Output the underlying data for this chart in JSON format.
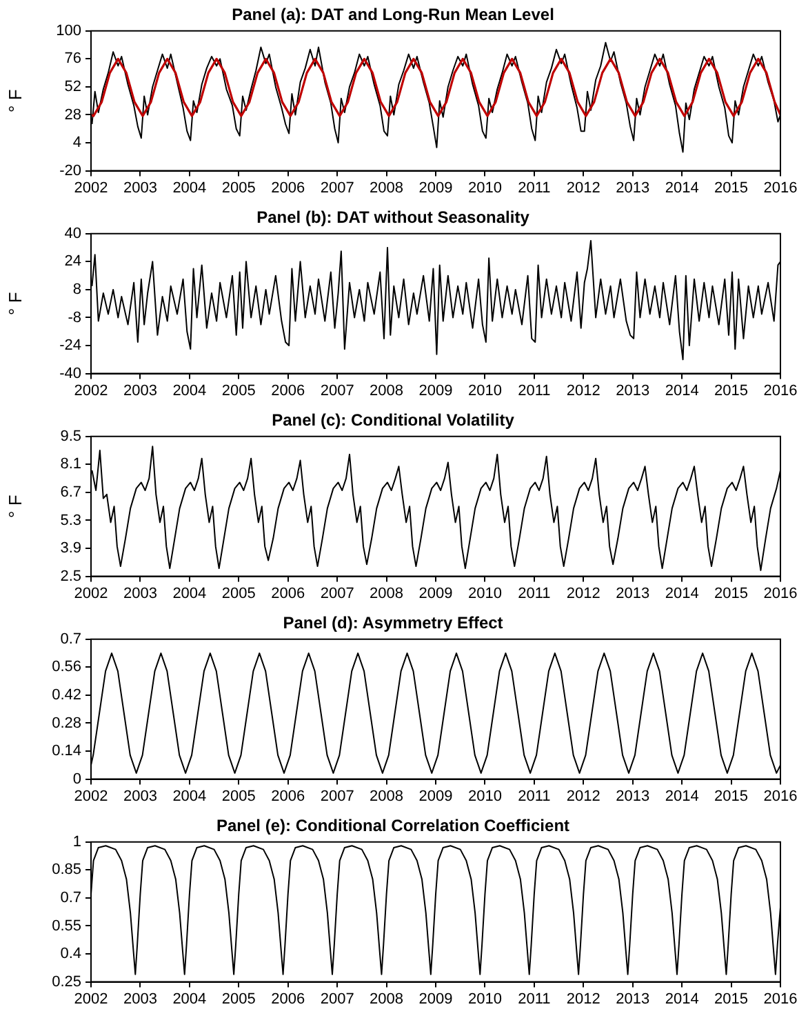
{
  "chart_data": [
    {
      "type": "line",
      "title": "Panel (a): DAT and Long-Run Mean Level",
      "ylabel": "° F",
      "xlim": [
        2002,
        2016
      ],
      "xticks": [
        2002,
        2003,
        2004,
        2005,
        2006,
        2007,
        2008,
        2009,
        2010,
        2011,
        2012,
        2013,
        2014,
        2015,
        2016
      ],
      "ylim": [
        -20,
        100
      ],
      "yticks": [
        -20,
        4,
        28,
        52,
        76,
        100
      ],
      "series": [
        {
          "color": "#000000",
          "x": [
            2002.02,
            2002.08,
            2002.15,
            2002.25,
            2002.35,
            2002.45,
            2002.55,
            2002.62,
            2002.75,
            2002.87,
            2002.95,
            2003.02,
            2003.08,
            2003.15,
            2003.25,
            2003.35,
            2003.45,
            2003.55,
            2003.62,
            2003.75,
            2003.87,
            2003.95,
            2004.02,
            2004.08,
            2004.15,
            2004.25,
            2004.35,
            2004.45,
            2004.55,
            2004.62,
            2004.75,
            2004.87,
            2004.95,
            2005.02,
            2005.08,
            2005.15,
            2005.25,
            2005.35,
            2005.45,
            2005.55,
            2005.62,
            2005.75,
            2005.87,
            2005.95,
            2006.02,
            2006.08,
            2006.15,
            2006.25,
            2006.35,
            2006.45,
            2006.55,
            2006.62,
            2006.75,
            2006.87,
            2006.95,
            2007.02,
            2007.08,
            2007.15,
            2007.25,
            2007.35,
            2007.45,
            2007.55,
            2007.62,
            2007.75,
            2007.87,
            2007.95,
            2008.02,
            2008.08,
            2008.15,
            2008.25,
            2008.35,
            2008.45,
            2008.55,
            2008.62,
            2008.75,
            2008.87,
            2008.95,
            2009.02,
            2009.08,
            2009.15,
            2009.25,
            2009.35,
            2009.45,
            2009.55,
            2009.62,
            2009.75,
            2009.87,
            2009.95,
            2010.02,
            2010.08,
            2010.15,
            2010.25,
            2010.35,
            2010.45,
            2010.55,
            2010.62,
            2010.75,
            2010.87,
            2010.95,
            2011.02,
            2011.08,
            2011.15,
            2011.25,
            2011.35,
            2011.45,
            2011.55,
            2011.62,
            2011.75,
            2011.87,
            2011.95,
            2012.02,
            2012.08,
            2012.15,
            2012.25,
            2012.35,
            2012.45,
            2012.55,
            2012.62,
            2012.75,
            2012.87,
            2012.95,
            2013.02,
            2013.08,
            2013.15,
            2013.25,
            2013.35,
            2013.45,
            2013.55,
            2013.62,
            2013.75,
            2013.87,
            2013.95,
            2014.02,
            2014.08,
            2014.15,
            2014.25,
            2014.35,
            2014.45,
            2014.55,
            2014.62,
            2014.75,
            2014.87,
            2014.95,
            2015.02,
            2015.08,
            2015.15,
            2015.25,
            2015.35,
            2015.45,
            2015.55,
            2015.62,
            2015.75,
            2015.87,
            2015.95,
            2016
          ],
          "values": [
            20,
            48,
            30,
            50,
            64,
            82,
            70,
            78,
            54,
            36,
            18,
            8,
            44,
            28,
            52,
            66,
            80,
            68,
            80,
            56,
            34,
            14,
            6,
            40,
            30,
            54,
            68,
            78,
            70,
            76,
            50,
            36,
            16,
            10,
            44,
            32,
            50,
            66,
            86,
            72,
            80,
            52,
            34,
            20,
            12,
            46,
            28,
            56,
            68,
            84,
            70,
            86,
            56,
            38,
            16,
            4,
            42,
            30,
            52,
            64,
            80,
            70,
            78,
            54,
            36,
            14,
            10,
            44,
            28,
            54,
            66,
            80,
            68,
            78,
            56,
            38,
            18,
            0,
            40,
            26,
            52,
            66,
            78,
            70,
            80,
            54,
            36,
            14,
            8,
            42,
            30,
            50,
            64,
            80,
            70,
            78,
            56,
            38,
            16,
            6,
            44,
            30,
            56,
            68,
            84,
            72,
            80,
            54,
            34,
            14,
            14,
            48,
            32,
            58,
            70,
            90,
            74,
            82,
            56,
            38,
            18,
            6,
            42,
            28,
            52,
            66,
            80,
            70,
            80,
            54,
            36,
            12,
            -4,
            38,
            24,
            50,
            64,
            78,
            70,
            78,
            52,
            34,
            10,
            4,
            40,
            28,
            52,
            66,
            80,
            70,
            78,
            56,
            40,
            22,
            28
          ]
        },
        {
          "color": "#c00000",
          "x": [
            2002,
            2002.05,
            2002.217,
            2002.383,
            2002.55,
            2002.717,
            2002.883,
            2003.05,
            2003.217,
            2003.383,
            2003.55,
            2003.717,
            2003.883,
            2004.05,
            2004.217,
            2004.383,
            2004.55,
            2004.717,
            2004.883,
            2005.05,
            2005.217,
            2005.383,
            2005.55,
            2005.717,
            2005.883,
            2006.05,
            2006.217,
            2006.383,
            2006.55,
            2006.717,
            2006.883,
            2007.05,
            2007.217,
            2007.383,
            2007.55,
            2007.717,
            2007.883,
            2008.05,
            2008.217,
            2008.383,
            2008.55,
            2008.717,
            2008.883,
            2009.05,
            2009.217,
            2009.383,
            2009.55,
            2009.717,
            2009.883,
            2010.05,
            2010.217,
            2010.383,
            2010.55,
            2010.717,
            2010.883,
            2011.05,
            2011.217,
            2011.383,
            2011.55,
            2011.717,
            2011.883,
            2012.05,
            2012.217,
            2012.383,
            2012.55,
            2012.717,
            2012.883,
            2013.05,
            2013.217,
            2013.383,
            2013.55,
            2013.717,
            2013.883,
            2014.05,
            2014.217,
            2014.383,
            2014.55,
            2014.717,
            2014.883,
            2015.05,
            2015.217,
            2015.383,
            2015.55,
            2015.717,
            2015.883,
            2016
          ],
          "values": [
            28,
            27,
            39,
            64,
            76,
            64,
            39,
            27,
            39,
            64,
            76,
            64,
            39,
            27,
            39,
            64,
            76,
            64,
            39,
            27,
            39,
            64,
            76,
            64,
            39,
            27,
            39,
            64,
            76,
            64,
            39,
            27,
            39,
            64,
            76,
            64,
            39,
            27,
            39,
            64,
            76,
            64,
            39,
            27,
            39,
            64,
            76,
            64,
            39,
            27,
            39,
            64,
            76,
            64,
            39,
            27,
            39,
            64,
            76,
            64,
            39,
            27,
            39,
            64,
            76,
            64,
            39,
            27,
            39,
            64,
            76,
            64,
            39,
            27,
            39,
            64,
            76,
            64,
            39,
            27,
            39,
            64,
            76,
            64,
            39,
            28
          ]
        }
      ]
    },
    {
      "type": "line",
      "title": "Panel (b): DAT without Seasonality",
      "ylabel": "° F",
      "xlim": [
        2002,
        2016
      ],
      "xticks": [
        2002,
        2003,
        2004,
        2005,
        2006,
        2007,
        2008,
        2009,
        2010,
        2011,
        2012,
        2013,
        2014,
        2015,
        2016
      ],
      "ylim": [
        -40,
        40
      ],
      "yticks": [
        -40,
        -24,
        -8,
        8,
        24,
        40
      ],
      "series": [
        {
          "color": "#000000",
          "x": [
            2002.02,
            2002.08,
            2002.15,
            2002.25,
            2002.35,
            2002.45,
            2002.55,
            2002.62,
            2002.75,
            2002.87,
            2002.95,
            2003.02,
            2003.08,
            2003.15,
            2003.25,
            2003.35,
            2003.45,
            2003.55,
            2003.62,
            2003.75,
            2003.87,
            2003.95,
            2004.02,
            2004.08,
            2004.15,
            2004.25,
            2004.35,
            2004.45,
            2004.55,
            2004.62,
            2004.75,
            2004.87,
            2004.95,
            2005.02,
            2005.08,
            2005.15,
            2005.25,
            2005.35,
            2005.45,
            2005.55,
            2005.62,
            2005.75,
            2005.87,
            2005.95,
            2006.02,
            2006.08,
            2006.15,
            2006.25,
            2006.35,
            2006.45,
            2006.55,
            2006.62,
            2006.75,
            2006.87,
            2006.95,
            2007.02,
            2007.08,
            2007.15,
            2007.25,
            2007.35,
            2007.45,
            2007.55,
            2007.62,
            2007.75,
            2007.87,
            2007.95,
            2008.02,
            2008.08,
            2008.15,
            2008.25,
            2008.35,
            2008.45,
            2008.55,
            2008.62,
            2008.75,
            2008.87,
            2008.95,
            2009.02,
            2009.08,
            2009.15,
            2009.25,
            2009.35,
            2009.45,
            2009.55,
            2009.62,
            2009.75,
            2009.87,
            2009.95,
            2010.02,
            2010.08,
            2010.15,
            2010.25,
            2010.35,
            2010.45,
            2010.55,
            2010.62,
            2010.75,
            2010.87,
            2010.95,
            2011.02,
            2011.08,
            2011.15,
            2011.25,
            2011.35,
            2011.45,
            2011.55,
            2011.62,
            2011.75,
            2011.87,
            2011.95,
            2012.02,
            2012.08,
            2012.15,
            2012.25,
            2012.35,
            2012.45,
            2012.55,
            2012.62,
            2012.75,
            2012.87,
            2012.95,
            2013.02,
            2013.08,
            2013.15,
            2013.25,
            2013.35,
            2013.45,
            2013.55,
            2013.62,
            2013.75,
            2013.87,
            2013.95,
            2014.02,
            2014.08,
            2014.15,
            2014.25,
            2014.35,
            2014.45,
            2014.55,
            2014.62,
            2014.75,
            2014.87,
            2014.95,
            2015.02,
            2015.08,
            2015.15,
            2015.25,
            2015.35,
            2015.45,
            2015.55,
            2015.62,
            2015.75,
            2015.87,
            2015.95,
            2016
          ],
          "values": [
            10,
            28,
            -10,
            6,
            -6,
            8,
            -8,
            4,
            -12,
            12,
            -22,
            14,
            -12,
            6,
            24,
            -18,
            4,
            -10,
            10,
            -6,
            14,
            -16,
            -26,
            20,
            -8,
            22,
            -14,
            6,
            -10,
            12,
            -8,
            16,
            -18,
            18,
            -14,
            24,
            -8,
            10,
            -12,
            8,
            -6,
            16,
            -10,
            -22,
            -24,
            20,
            -10,
            24,
            -8,
            10,
            -6,
            14,
            -10,
            18,
            -14,
            6,
            30,
            -26,
            12,
            -8,
            8,
            -10,
            12,
            -6,
            18,
            -20,
            32,
            -18,
            10,
            -8,
            14,
            -12,
            6,
            -6,
            16,
            -10,
            20,
            -29,
            22,
            -10,
            16,
            -8,
            10,
            -6,
            12,
            -14,
            14,
            -12,
            -22,
            26,
            -10,
            14,
            -8,
            10,
            -6,
            8,
            -12,
            16,
            -20,
            -22,
            22,
            -8,
            14,
            -6,
            10,
            -8,
            12,
            -10,
            18,
            -14,
            12,
            20,
            36,
            -8,
            14,
            -6,
            10,
            -8,
            14,
            -10,
            -18,
            -20,
            18,
            -8,
            14,
            -6,
            10,
            -8,
            12,
            -12,
            16,
            -16,
            -32,
            16,
            -24,
            14,
            -10,
            12,
            -8,
            10,
            -12,
            14,
            -18,
            18,
            -26,
            14,
            -20,
            10,
            -8,
            10,
            -6,
            12,
            -10,
            22,
            24
          ]
        }
      ]
    },
    {
      "type": "line",
      "title": "Panel (c): Conditional Volatility",
      "ylabel": "° F",
      "xlim": [
        2002,
        2016
      ],
      "xticks": [
        2002,
        2003,
        2004,
        2005,
        2006,
        2007,
        2008,
        2009,
        2010,
        2011,
        2012,
        2013,
        2014,
        2015,
        2016
      ],
      "ylim": [
        2.5,
        9.5
      ],
      "yticks": [
        2.5,
        3.9,
        5.3,
        6.7,
        8.1,
        9.5
      ],
      "series": [
        {
          "color": "#000000",
          "x": [
            2002.02,
            2002.1,
            2002.18,
            2002.25,
            2002.32,
            2002.4,
            2002.47,
            2002.53,
            2002.6,
            2002.7,
            2002.8,
            2002.92,
            2003.02,
            2003.1,
            2003.18,
            2003.25,
            2003.32,
            2003.4,
            2003.47,
            2003.53,
            2003.6,
            2003.7,
            2003.8,
            2003.92,
            2004.02,
            2004.1,
            2004.18,
            2004.25,
            2004.32,
            2004.4,
            2004.47,
            2004.53,
            2004.6,
            2004.7,
            2004.8,
            2004.92,
            2005.02,
            2005.1,
            2005.18,
            2005.25,
            2005.32,
            2005.4,
            2005.47,
            2005.53,
            2005.6,
            2005.7,
            2005.8,
            2005.92,
            2006.02,
            2006.1,
            2006.18,
            2006.25,
            2006.32,
            2006.4,
            2006.47,
            2006.53,
            2006.6,
            2006.7,
            2006.8,
            2006.92,
            2007.02,
            2007.1,
            2007.18,
            2007.25,
            2007.32,
            2007.4,
            2007.47,
            2007.53,
            2007.6,
            2007.7,
            2007.8,
            2007.92,
            2008.02,
            2008.1,
            2008.18,
            2008.25,
            2008.32,
            2008.4,
            2008.47,
            2008.53,
            2008.6,
            2008.7,
            2008.8,
            2008.92,
            2009.02,
            2009.1,
            2009.18,
            2009.25,
            2009.32,
            2009.4,
            2009.47,
            2009.53,
            2009.6,
            2009.7,
            2009.8,
            2009.92,
            2010.02,
            2010.1,
            2010.18,
            2010.25,
            2010.32,
            2010.4,
            2010.47,
            2010.53,
            2010.6,
            2010.7,
            2010.8,
            2010.92,
            2011.02,
            2011.1,
            2011.18,
            2011.25,
            2011.32,
            2011.4,
            2011.47,
            2011.53,
            2011.6,
            2011.7,
            2011.8,
            2011.92,
            2012.02,
            2012.1,
            2012.18,
            2012.25,
            2012.32,
            2012.4,
            2012.47,
            2012.53,
            2012.6,
            2012.7,
            2012.8,
            2012.92,
            2013.02,
            2013.1,
            2013.18,
            2013.25,
            2013.32,
            2013.4,
            2013.47,
            2013.53,
            2013.6,
            2013.7,
            2013.8,
            2013.92,
            2014.02,
            2014.1,
            2014.18,
            2014.25,
            2014.32,
            2014.4,
            2014.47,
            2014.53,
            2014.6,
            2014.7,
            2014.8,
            2014.92,
            2015.02,
            2015.1,
            2015.18,
            2015.25,
            2015.32,
            2015.4,
            2015.47,
            2015.53,
            2015.6,
            2015.7,
            2015.8,
            2015.92,
            2016
          ],
          "values": [
            7.8,
            6.8,
            8.8,
            6.4,
            6.6,
            5.2,
            6.0,
            4.0,
            3.0,
            4.4,
            5.9,
            6.9,
            7.2,
            6.8,
            7.4,
            9.0,
            6.6,
            5.2,
            6.0,
            4.0,
            2.9,
            4.4,
            5.9,
            6.9,
            7.2,
            6.8,
            7.4,
            8.4,
            6.6,
            5.2,
            6.0,
            4.0,
            2.9,
            4.4,
            5.9,
            6.9,
            7.2,
            6.8,
            7.4,
            8.4,
            6.6,
            5.2,
            6.0,
            4.0,
            3.3,
            4.4,
            5.9,
            6.9,
            7.2,
            6.8,
            7.4,
            8.3,
            6.6,
            5.2,
            6.0,
            4.0,
            3.0,
            4.4,
            5.9,
            6.9,
            7.2,
            6.8,
            7.4,
            8.6,
            6.6,
            5.2,
            6.0,
            4.0,
            3.1,
            4.4,
            5.9,
            6.9,
            7.2,
            6.8,
            7.4,
            8.0,
            6.6,
            5.2,
            6.0,
            4.0,
            3.0,
            4.4,
            5.9,
            6.9,
            7.2,
            6.8,
            7.4,
            8.2,
            6.6,
            5.2,
            6.0,
            4.0,
            2.9,
            4.4,
            5.9,
            6.9,
            7.2,
            6.8,
            7.4,
            8.6,
            6.6,
            5.2,
            6.0,
            4.0,
            3.0,
            4.4,
            5.9,
            6.9,
            7.2,
            6.8,
            7.4,
            8.5,
            6.6,
            5.2,
            6.0,
            4.0,
            3.0,
            4.4,
            5.9,
            6.9,
            7.2,
            6.8,
            7.4,
            8.4,
            6.6,
            5.2,
            6.0,
            4.0,
            3.1,
            4.4,
            5.9,
            6.9,
            7.2,
            6.8,
            7.4,
            8.0,
            6.6,
            5.2,
            6.0,
            4.0,
            2.9,
            4.4,
            5.9,
            6.9,
            7.2,
            6.8,
            7.4,
            8.0,
            6.6,
            5.2,
            6.0,
            4.0,
            3.0,
            4.4,
            5.9,
            6.9,
            7.2,
            6.8,
            7.4,
            8.0,
            6.6,
            5.2,
            6.0,
            4.0,
            2.8,
            4.4,
            5.9,
            6.9,
            7.8
          ]
        }
      ]
    },
    {
      "type": "line",
      "title": "Panel (d): Asymmetry Effect",
      "xlim": [
        2002,
        2016
      ],
      "xticks": [
        2002,
        2003,
        2004,
        2005,
        2006,
        2007,
        2008,
        2009,
        2010,
        2011,
        2012,
        2013,
        2014,
        2015,
        2016
      ],
      "ylim": [
        0,
        0.7
      ],
      "yticks": [
        0,
        0.14,
        0.28,
        0.42,
        0.56,
        0.7
      ],
      "series": [
        {
          "color": "#000000",
          "x": [
            2002,
            2002.045,
            2002.17,
            2002.295,
            2002.42,
            2002.545,
            2002.67,
            2002.795,
            2002.92,
            2003.045,
            2003.17,
            2003.295,
            2003.42,
            2003.545,
            2003.67,
            2003.795,
            2003.92,
            2004.045,
            2004.17,
            2004.295,
            2004.42,
            2004.545,
            2004.67,
            2004.795,
            2004.92,
            2005.045,
            2005.17,
            2005.295,
            2005.42,
            2005.545,
            2005.67,
            2005.795,
            2005.92,
            2006.045,
            2006.17,
            2006.295,
            2006.42,
            2006.545,
            2006.67,
            2006.795,
            2006.92,
            2007.045,
            2007.17,
            2007.295,
            2007.42,
            2007.545,
            2007.67,
            2007.795,
            2007.92,
            2008.045,
            2008.17,
            2008.295,
            2008.42,
            2008.545,
            2008.67,
            2008.795,
            2008.92,
            2009.045,
            2009.17,
            2009.295,
            2009.42,
            2009.545,
            2009.67,
            2009.795,
            2009.92,
            2010.045,
            2010.17,
            2010.295,
            2010.42,
            2010.545,
            2010.67,
            2010.795,
            2010.92,
            2011.045,
            2011.17,
            2011.295,
            2011.42,
            2011.545,
            2011.67,
            2011.795,
            2011.92,
            2012.045,
            2012.17,
            2012.295,
            2012.42,
            2012.545,
            2012.67,
            2012.795,
            2012.92,
            2013.045,
            2013.17,
            2013.295,
            2013.42,
            2013.545,
            2013.67,
            2013.795,
            2013.92,
            2014.045,
            2014.17,
            2014.295,
            2014.42,
            2014.545,
            2014.67,
            2014.795,
            2014.92,
            2015.045,
            2015.17,
            2015.295,
            2015.42,
            2015.545,
            2015.67,
            2015.795,
            2015.92,
            2016
          ],
          "values": [
            0.07,
            0.12,
            0.33,
            0.54,
            0.63,
            0.54,
            0.33,
            0.12,
            0.03,
            0.12,
            0.33,
            0.54,
            0.63,
            0.54,
            0.33,
            0.12,
            0.03,
            0.12,
            0.33,
            0.54,
            0.63,
            0.54,
            0.33,
            0.12,
            0.03,
            0.12,
            0.33,
            0.54,
            0.63,
            0.54,
            0.33,
            0.12,
            0.03,
            0.12,
            0.33,
            0.54,
            0.63,
            0.54,
            0.33,
            0.12,
            0.03,
            0.12,
            0.33,
            0.54,
            0.63,
            0.54,
            0.33,
            0.12,
            0.03,
            0.12,
            0.33,
            0.54,
            0.63,
            0.54,
            0.33,
            0.12,
            0.03,
            0.12,
            0.33,
            0.54,
            0.63,
            0.54,
            0.33,
            0.12,
            0.03,
            0.12,
            0.33,
            0.54,
            0.63,
            0.54,
            0.33,
            0.12,
            0.03,
            0.12,
            0.33,
            0.54,
            0.63,
            0.54,
            0.33,
            0.12,
            0.03,
            0.12,
            0.33,
            0.54,
            0.63,
            0.54,
            0.33,
            0.12,
            0.03,
            0.12,
            0.33,
            0.54,
            0.63,
            0.54,
            0.33,
            0.12,
            0.03,
            0.12,
            0.33,
            0.54,
            0.63,
            0.54,
            0.33,
            0.12,
            0.03,
            0.12,
            0.33,
            0.54,
            0.63,
            0.54,
            0.33,
            0.12,
            0.03,
            0.07
          ]
        }
      ]
    },
    {
      "type": "line",
      "title": "Panel (e): Conditional Correlation Coefficient",
      "xlim": [
        2002,
        2016
      ],
      "xticks": [
        2002,
        2003,
        2004,
        2005,
        2006,
        2007,
        2008,
        2009,
        2010,
        2011,
        2012,
        2013,
        2014,
        2015,
        2016
      ],
      "ylim": [
        0.25,
        1
      ],
      "yticks": [
        0.25,
        0.4,
        0.55,
        0.7,
        0.85,
        1
      ],
      "series": [
        {
          "color": "#000000",
          "x": [
            2002,
            2002.05,
            2002.15,
            2002.3,
            2002.5,
            2002.62,
            2002.72,
            2002.8,
            2002.86,
            2002.9,
            2002.94,
            2003,
            2003.05,
            2003.15,
            2003.3,
            2003.5,
            2003.62,
            2003.72,
            2003.8,
            2003.86,
            2003.9,
            2003.94,
            2004,
            2004.05,
            2004.15,
            2004.3,
            2004.5,
            2004.62,
            2004.72,
            2004.8,
            2004.86,
            2004.9,
            2004.94,
            2005,
            2005.05,
            2005.15,
            2005.3,
            2005.5,
            2005.62,
            2005.72,
            2005.8,
            2005.86,
            2005.9,
            2005.94,
            2006,
            2006.05,
            2006.15,
            2006.3,
            2006.5,
            2006.62,
            2006.72,
            2006.8,
            2006.86,
            2006.9,
            2006.94,
            2007,
            2007.05,
            2007.15,
            2007.3,
            2007.5,
            2007.62,
            2007.72,
            2007.8,
            2007.86,
            2007.9,
            2007.94,
            2008,
            2008.05,
            2008.15,
            2008.3,
            2008.5,
            2008.62,
            2008.72,
            2008.8,
            2008.86,
            2008.9,
            2008.94,
            2009,
            2009.05,
            2009.15,
            2009.3,
            2009.5,
            2009.62,
            2009.72,
            2009.8,
            2009.86,
            2009.9,
            2009.94,
            2010,
            2010.05,
            2010.15,
            2010.3,
            2010.5,
            2010.62,
            2010.72,
            2010.8,
            2010.86,
            2010.9,
            2010.94,
            2011,
            2011.05,
            2011.15,
            2011.3,
            2011.5,
            2011.62,
            2011.72,
            2011.8,
            2011.86,
            2011.9,
            2011.94,
            2012,
            2012.05,
            2012.15,
            2012.3,
            2012.5,
            2012.62,
            2012.72,
            2012.8,
            2012.86,
            2012.9,
            2012.94,
            2013,
            2013.05,
            2013.15,
            2013.3,
            2013.5,
            2013.62,
            2013.72,
            2013.8,
            2013.86,
            2013.9,
            2013.94,
            2014,
            2014.05,
            2014.15,
            2014.3,
            2014.5,
            2014.62,
            2014.72,
            2014.8,
            2014.86,
            2014.9,
            2014.94,
            2015,
            2015.05,
            2015.15,
            2015.3,
            2015.5,
            2015.62,
            2015.72,
            2015.8,
            2015.86,
            2015.9,
            2015.94,
            2016
          ],
          "values": [
            0.72,
            0.9,
            0.97,
            0.98,
            0.96,
            0.9,
            0.8,
            0.62,
            0.42,
            0.29,
            0.45,
            0.72,
            0.9,
            0.97,
            0.98,
            0.96,
            0.9,
            0.8,
            0.62,
            0.42,
            0.29,
            0.45,
            0.72,
            0.9,
            0.97,
            0.98,
            0.96,
            0.9,
            0.8,
            0.62,
            0.42,
            0.29,
            0.45,
            0.72,
            0.9,
            0.97,
            0.98,
            0.96,
            0.9,
            0.8,
            0.62,
            0.42,
            0.29,
            0.45,
            0.72,
            0.9,
            0.97,
            0.98,
            0.96,
            0.9,
            0.8,
            0.62,
            0.42,
            0.29,
            0.45,
            0.72,
            0.9,
            0.97,
            0.98,
            0.96,
            0.9,
            0.8,
            0.62,
            0.42,
            0.29,
            0.45,
            0.72,
            0.9,
            0.97,
            0.98,
            0.96,
            0.9,
            0.8,
            0.62,
            0.42,
            0.29,
            0.45,
            0.72,
            0.9,
            0.97,
            0.98,
            0.96,
            0.9,
            0.8,
            0.62,
            0.42,
            0.29,
            0.45,
            0.72,
            0.9,
            0.97,
            0.98,
            0.96,
            0.9,
            0.8,
            0.62,
            0.42,
            0.29,
            0.45,
            0.72,
            0.9,
            0.97,
            0.98,
            0.96,
            0.9,
            0.8,
            0.62,
            0.42,
            0.29,
            0.45,
            0.72,
            0.9,
            0.97,
            0.98,
            0.96,
            0.9,
            0.8,
            0.62,
            0.42,
            0.29,
            0.45,
            0.72,
            0.9,
            0.97,
            0.98,
            0.96,
            0.9,
            0.8,
            0.62,
            0.42,
            0.29,
            0.45,
            0.72,
            0.9,
            0.97,
            0.98,
            0.96,
            0.9,
            0.8,
            0.62,
            0.42,
            0.29,
            0.45,
            0.72,
            0.9,
            0.97,
            0.98,
            0.96,
            0.9,
            0.8,
            0.62,
            0.42,
            0.29,
            0.45,
            0.65
          ]
        }
      ]
    }
  ]
}
